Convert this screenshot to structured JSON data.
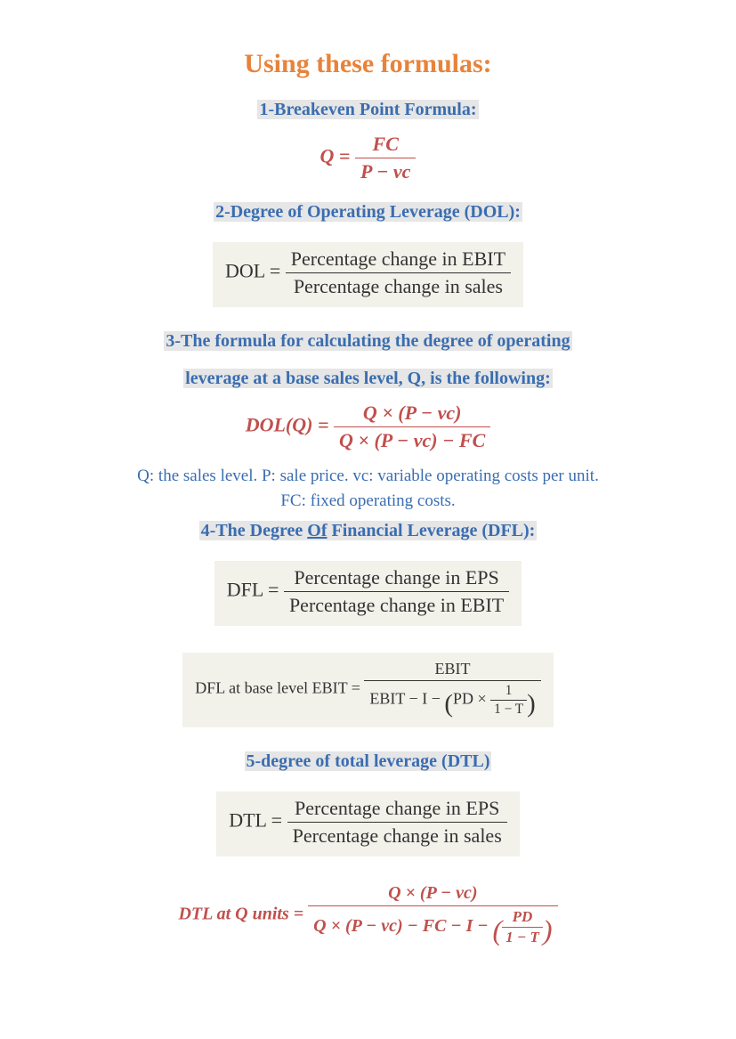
{
  "colors": {
    "title": "#e8833a",
    "heading_text": "#3a6db0",
    "heading_bg": "#e6e6e6",
    "formula_red": "#c0504d",
    "formula_box_bg": "#f2f2eb",
    "formula_box_text": "#333333",
    "note_text": "#3a6db0",
    "page_bg": "#ffffff"
  },
  "fonts": {
    "family": "Times New Roman, serif",
    "title_size_pt": 22,
    "heading_size_pt": 15,
    "formula_size_pt": 16,
    "note_size_pt": 14
  },
  "title": "Using these formulas:",
  "sections": {
    "s1": {
      "heading": "1-Breakeven Point Formula:",
      "formula": {
        "lhs": "Q =",
        "num": "FC",
        "den": "P − vc"
      }
    },
    "s2": {
      "heading": "2-Degree of Operating Leverage (DOL):",
      "formula": {
        "lhs": "DOL =",
        "num": "Percentage change in EBIT",
        "den": "Percentage change in sales"
      }
    },
    "s3": {
      "heading_line1": "3-The formula for calculating the degree of operating",
      "heading_line2": "leverage at a base sales level, Q, is the following:",
      "formula": {
        "lhs": "DOL(Q) =",
        "num": "Q × (P − vc)",
        "den": "Q × (P − vc) − FC"
      },
      "note_line1": "Q: the sales level. P: sale price. vc: variable operating costs per unit.",
      "note_line2": "FC: fixed operating costs."
    },
    "s4": {
      "heading_pre": "4-The Degree ",
      "heading_of": "Of",
      "heading_post": " Financial Leverage (DFL):",
      "formula1": {
        "lhs": "DFL =",
        "num": "Percentage change in EPS",
        "den": "Percentage change in EBIT"
      },
      "formula2": {
        "lhs": "DFL at base level EBIT =",
        "num": "EBIT",
        "den_pre": "EBIT − I − ",
        "den_inner_pre": "PD × ",
        "den_inner_num": "1",
        "den_inner_den": "1 − T"
      }
    },
    "s5": {
      "heading": "5-degree of total leverage (DTL)",
      "formula1": {
        "lhs": "DTL =",
        "num": "Percentage change in EPS",
        "den": "Percentage change in sales"
      },
      "formula2": {
        "lhs": "DTL at Q units =",
        "num": "Q × (P − vc)",
        "den_pre": "Q × (P − vc) − FC − I − ",
        "den_inner_num": "PD",
        "den_inner_den": "1 − T"
      }
    }
  }
}
